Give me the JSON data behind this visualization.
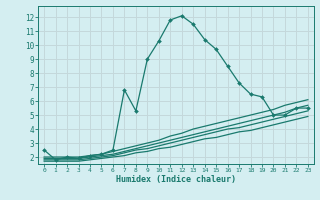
{
  "title": "",
  "xlabel": "Humidex (Indice chaleur)",
  "bg_color": "#d4eef1",
  "grid_color": "#c4d8db",
  "line_color": "#1a7a6e",
  "xlim": [
    -0.5,
    23.5
  ],
  "ylim": [
    1.5,
    12.8
  ],
  "yticks": [
    2,
    3,
    4,
    5,
    6,
    7,
    8,
    9,
    10,
    11,
    12
  ],
  "xticks": [
    0,
    1,
    2,
    3,
    4,
    5,
    6,
    7,
    8,
    9,
    10,
    11,
    12,
    13,
    14,
    15,
    16,
    17,
    18,
    19,
    20,
    21,
    22,
    23
  ],
  "line1_x": [
    0,
    1,
    2,
    3,
    4,
    5,
    6,
    7,
    8,
    9,
    10,
    11,
    12,
    13,
    14,
    15,
    16,
    17,
    18,
    19,
    20,
    21,
    22,
    23
  ],
  "line1_y": [
    2.5,
    1.8,
    2.0,
    1.9,
    2.1,
    2.2,
    2.5,
    6.8,
    5.3,
    9.0,
    10.3,
    11.8,
    12.1,
    11.5,
    10.4,
    9.7,
    8.5,
    7.3,
    6.5,
    6.3,
    5.0,
    5.0,
    5.5,
    5.5
  ],
  "line2_x": [
    0,
    1,
    2,
    3,
    4,
    5,
    6,
    7,
    8,
    9,
    10,
    11,
    12,
    13,
    14,
    15,
    16,
    17,
    18,
    19,
    20,
    21,
    22,
    23
  ],
  "line2_y": [
    2.0,
    2.0,
    2.0,
    2.0,
    2.1,
    2.2,
    2.4,
    2.6,
    2.8,
    3.0,
    3.2,
    3.5,
    3.7,
    4.0,
    4.2,
    4.4,
    4.6,
    4.8,
    5.0,
    5.2,
    5.4,
    5.7,
    5.9,
    6.1
  ],
  "line3_x": [
    0,
    1,
    2,
    3,
    4,
    5,
    6,
    7,
    8,
    9,
    10,
    11,
    12,
    13,
    14,
    15,
    16,
    17,
    18,
    19,
    20,
    21,
    22,
    23
  ],
  "line3_y": [
    1.9,
    1.9,
    1.9,
    1.9,
    2.0,
    2.1,
    2.2,
    2.4,
    2.6,
    2.8,
    3.0,
    3.2,
    3.4,
    3.6,
    3.8,
    4.0,
    4.2,
    4.4,
    4.6,
    4.8,
    5.0,
    5.2,
    5.5,
    5.7
  ],
  "line4_x": [
    0,
    1,
    2,
    3,
    4,
    5,
    6,
    7,
    8,
    9,
    10,
    11,
    12,
    13,
    14,
    15,
    16,
    17,
    18,
    19,
    20,
    21,
    22,
    23
  ],
  "line4_y": [
    1.8,
    1.8,
    1.8,
    1.8,
    1.9,
    2.0,
    2.1,
    2.3,
    2.5,
    2.6,
    2.8,
    3.0,
    3.2,
    3.4,
    3.6,
    3.8,
    4.0,
    4.1,
    4.3,
    4.5,
    4.7,
    4.9,
    5.1,
    5.3
  ],
  "line5_x": [
    0,
    1,
    2,
    3,
    4,
    5,
    6,
    7,
    8,
    9,
    10,
    11,
    12,
    13,
    14,
    15,
    16,
    17,
    18,
    19,
    20,
    21,
    22,
    23
  ],
  "line5_y": [
    1.7,
    1.7,
    1.7,
    1.7,
    1.8,
    1.9,
    2.0,
    2.1,
    2.3,
    2.4,
    2.6,
    2.7,
    2.9,
    3.1,
    3.3,
    3.4,
    3.6,
    3.8,
    3.9,
    4.1,
    4.3,
    4.5,
    4.7,
    4.9
  ]
}
